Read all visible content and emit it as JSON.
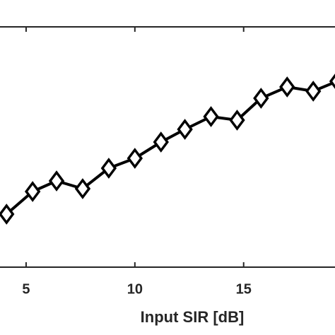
{
  "chart_data": {
    "type": "line",
    "xlabel": "Input SIR [dB]",
    "x": [
      4.1,
      5.3,
      6.4,
      7.6,
      8.8,
      10.0,
      11.2,
      12.3,
      13.5,
      14.7,
      15.8,
      17.0,
      18.2,
      19.3
    ],
    "series": [
      {
        "color": "#000000",
        "values": [
          7.5,
          10.7,
          12.2,
          11.1,
          14.0,
          15.4,
          17.7,
          19.5,
          21.3,
          20.8,
          23.9,
          25.5,
          24.9,
          26.3
        ]
      }
    ],
    "xlim": [
      3.8,
      19.2
    ],
    "xticks": [
      5,
      10,
      15
    ],
    "ylim": [
      0,
      34
    ]
  }
}
